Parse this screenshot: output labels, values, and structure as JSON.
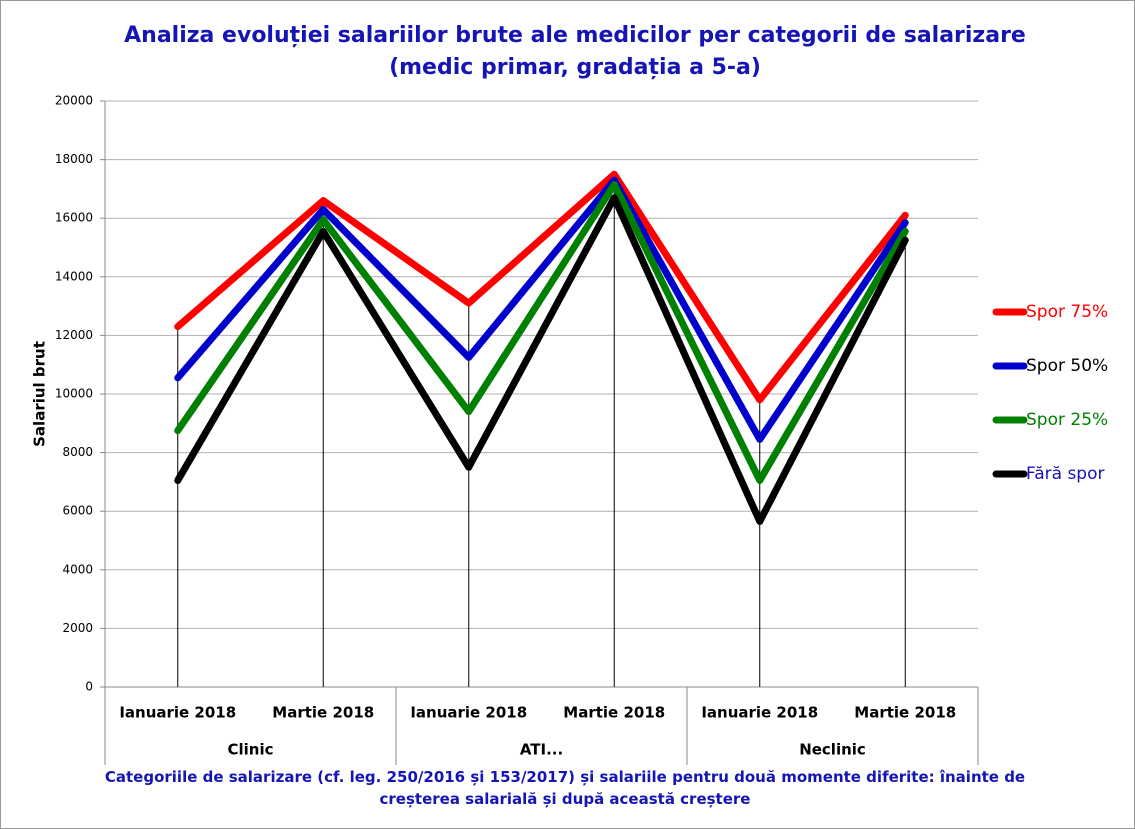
{
  "chart_data": {
    "type": "line",
    "title": "Analiza evoluției salariilor brute ale medicilor  per categorii de salarizare (medic primar, gradația a 5-a)",
    "x_label": "Categoriile de salarizare (cf. leg. 250/2016 și 153/2017) și salariile pentru două momente diferite: înainte de creșterea salarială  și după această creștere",
    "y_label": "Salariul brut",
    "categories": [
      "Ianuarie 2018",
      "Martie 2018",
      "Ianuarie 2018",
      "Martie 2018",
      "Ianuarie 2018",
      "Martie 2018"
    ],
    "groups": [
      "Clinic",
      "ATI...",
      "Neclinic"
    ],
    "series": [
      {
        "name": "Spor 75%",
        "color": "#ff0000",
        "label_color": "#ff0000",
        "values": [
          12300,
          16600,
          13100,
          17500,
          9800,
          16100
        ]
      },
      {
        "name": "Spor 50%",
        "color": "#0000cc",
        "label_color": "#000000",
        "values": [
          10550,
          16300,
          11250,
          17300,
          8450,
          15850
        ]
      },
      {
        "name": "Spor 25%",
        "color": "#008000",
        "label_color": "#008000",
        "values": [
          8750,
          15950,
          9400,
          17150,
          7050,
          15550
        ]
      },
      {
        "name": "Fără spor",
        "color": "#000000",
        "label_color": "#1515b5",
        "values": [
          7050,
          15550,
          7500,
          16700,
          5650,
          15250
        ]
      }
    ],
    "ylim": [
      0,
      20000
    ],
    "yticks": [
      0,
      2000,
      4000,
      6000,
      8000,
      10000,
      12000,
      14000,
      16000,
      18000,
      20000
    ],
    "grid": true,
    "drop_lines": true,
    "legend": "right"
  }
}
